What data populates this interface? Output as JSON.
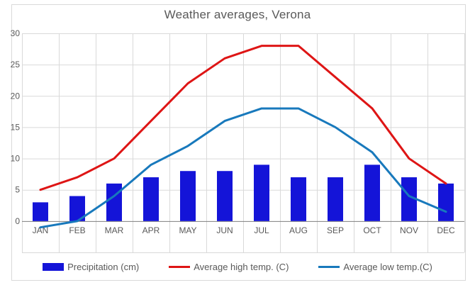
{
  "title": "Weather averages, Verona",
  "colors": {
    "precipitation": "#1414d8",
    "high_temp": "#de1515",
    "low_temp": "#1879bc",
    "gridline": "#d9d9d9",
    "axis_line": "#7f7f7f",
    "text": "#595959",
    "border": "#d9d9d9",
    "background": "#ffffff"
  },
  "chart_data": {
    "type": "combo",
    "title": "Weather averages, Verona",
    "categories": [
      "JAN",
      "FEB",
      "MAR",
      "APR",
      "MAY",
      "JUN",
      "JUL",
      "AUG",
      "SEP",
      "OCT",
      "NOV",
      "DEC"
    ],
    "series": [
      {
        "name": "Precipitation (cm)",
        "type": "bar",
        "color": "#1414d8",
        "values": [
          3,
          4,
          6,
          7,
          8,
          8,
          9,
          7,
          7,
          9,
          7,
          6
        ]
      },
      {
        "name": "Average high temp. (C)",
        "type": "line",
        "color": "#de1515",
        "values": [
          5,
          7,
          10,
          16,
          22,
          26,
          28,
          28,
          23,
          18,
          10,
          6
        ]
      },
      {
        "name": "Average low temp.(C)",
        "type": "line",
        "color": "#1879bc",
        "values": [
          -1,
          0,
          4,
          9,
          12,
          16,
          18,
          18,
          15,
          11,
          4,
          1.5
        ]
      }
    ],
    "y_axis": {
      "min": -5,
      "max": 30,
      "tick_step": 5,
      "labeled_ticks": [
        0,
        5,
        10,
        15,
        20,
        25,
        30
      ]
    },
    "x_axis": {
      "zero_line": 0
    },
    "grid": true,
    "legend_position": "bottom"
  }
}
